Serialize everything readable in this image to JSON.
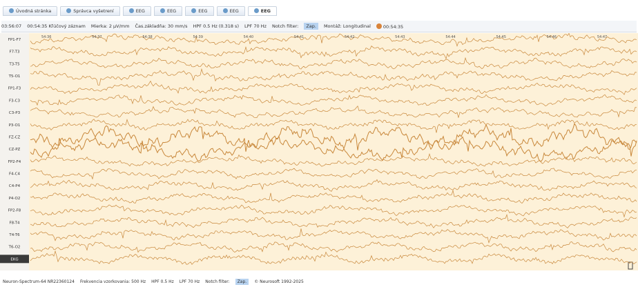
{
  "tabs": [
    "Úvodná stránka",
    "Správca vyšetrení",
    "EEG",
    "EEG",
    "EEG",
    "EEG",
    "EEG"
  ],
  "toolbar": {
    "time": "03:56:07",
    "key_record": "00:54:35 Kľúčový záznam",
    "scale": "Mierka: 2 µV/mm",
    "timebase": "Čas.základňa: 30 mm/s",
    "hpf": "HPF 0.5 Hz (0.318 s)",
    "lpf": "LPF 70 Hz",
    "notch_label": "Notch filter:",
    "notch_state": "Zap.",
    "montage": "Montáž: Longitudinal",
    "cursor_time": "00:54:35"
  },
  "channels": [
    "FP1-F7",
    "F7-T3",
    "T3-T5",
    "T5-O1",
    "FP1-F3",
    "F3-C3",
    "C3-P3",
    "P3-O1",
    "FZ-CZ",
    "CZ-PZ",
    "FP2-F4",
    "F4-C4",
    "C4-P4",
    "P4-O2",
    "FP2-F8",
    "F8-T4",
    "T4-T6",
    "T6-O2",
    "EKG"
  ],
  "time_marks": [
    "54:36",
    "54:37",
    "54:38",
    "54:39",
    "54:40",
    "54:41",
    "54:42",
    "54:43",
    "54:44",
    "54:45",
    "54:46",
    "54:47"
  ],
  "status": {
    "device": "Neuron-Spectrum-64 NR22360124",
    "sampling": "Frekvencia vzorkovania: 500 Hz",
    "hpf": "HPF 0.5 Hz",
    "lpf": "LPF 70 Hz",
    "notch_label": "Notch filter:",
    "notch_state": "Zap.",
    "copyright": "© Neurosoft 1992-2025"
  }
}
